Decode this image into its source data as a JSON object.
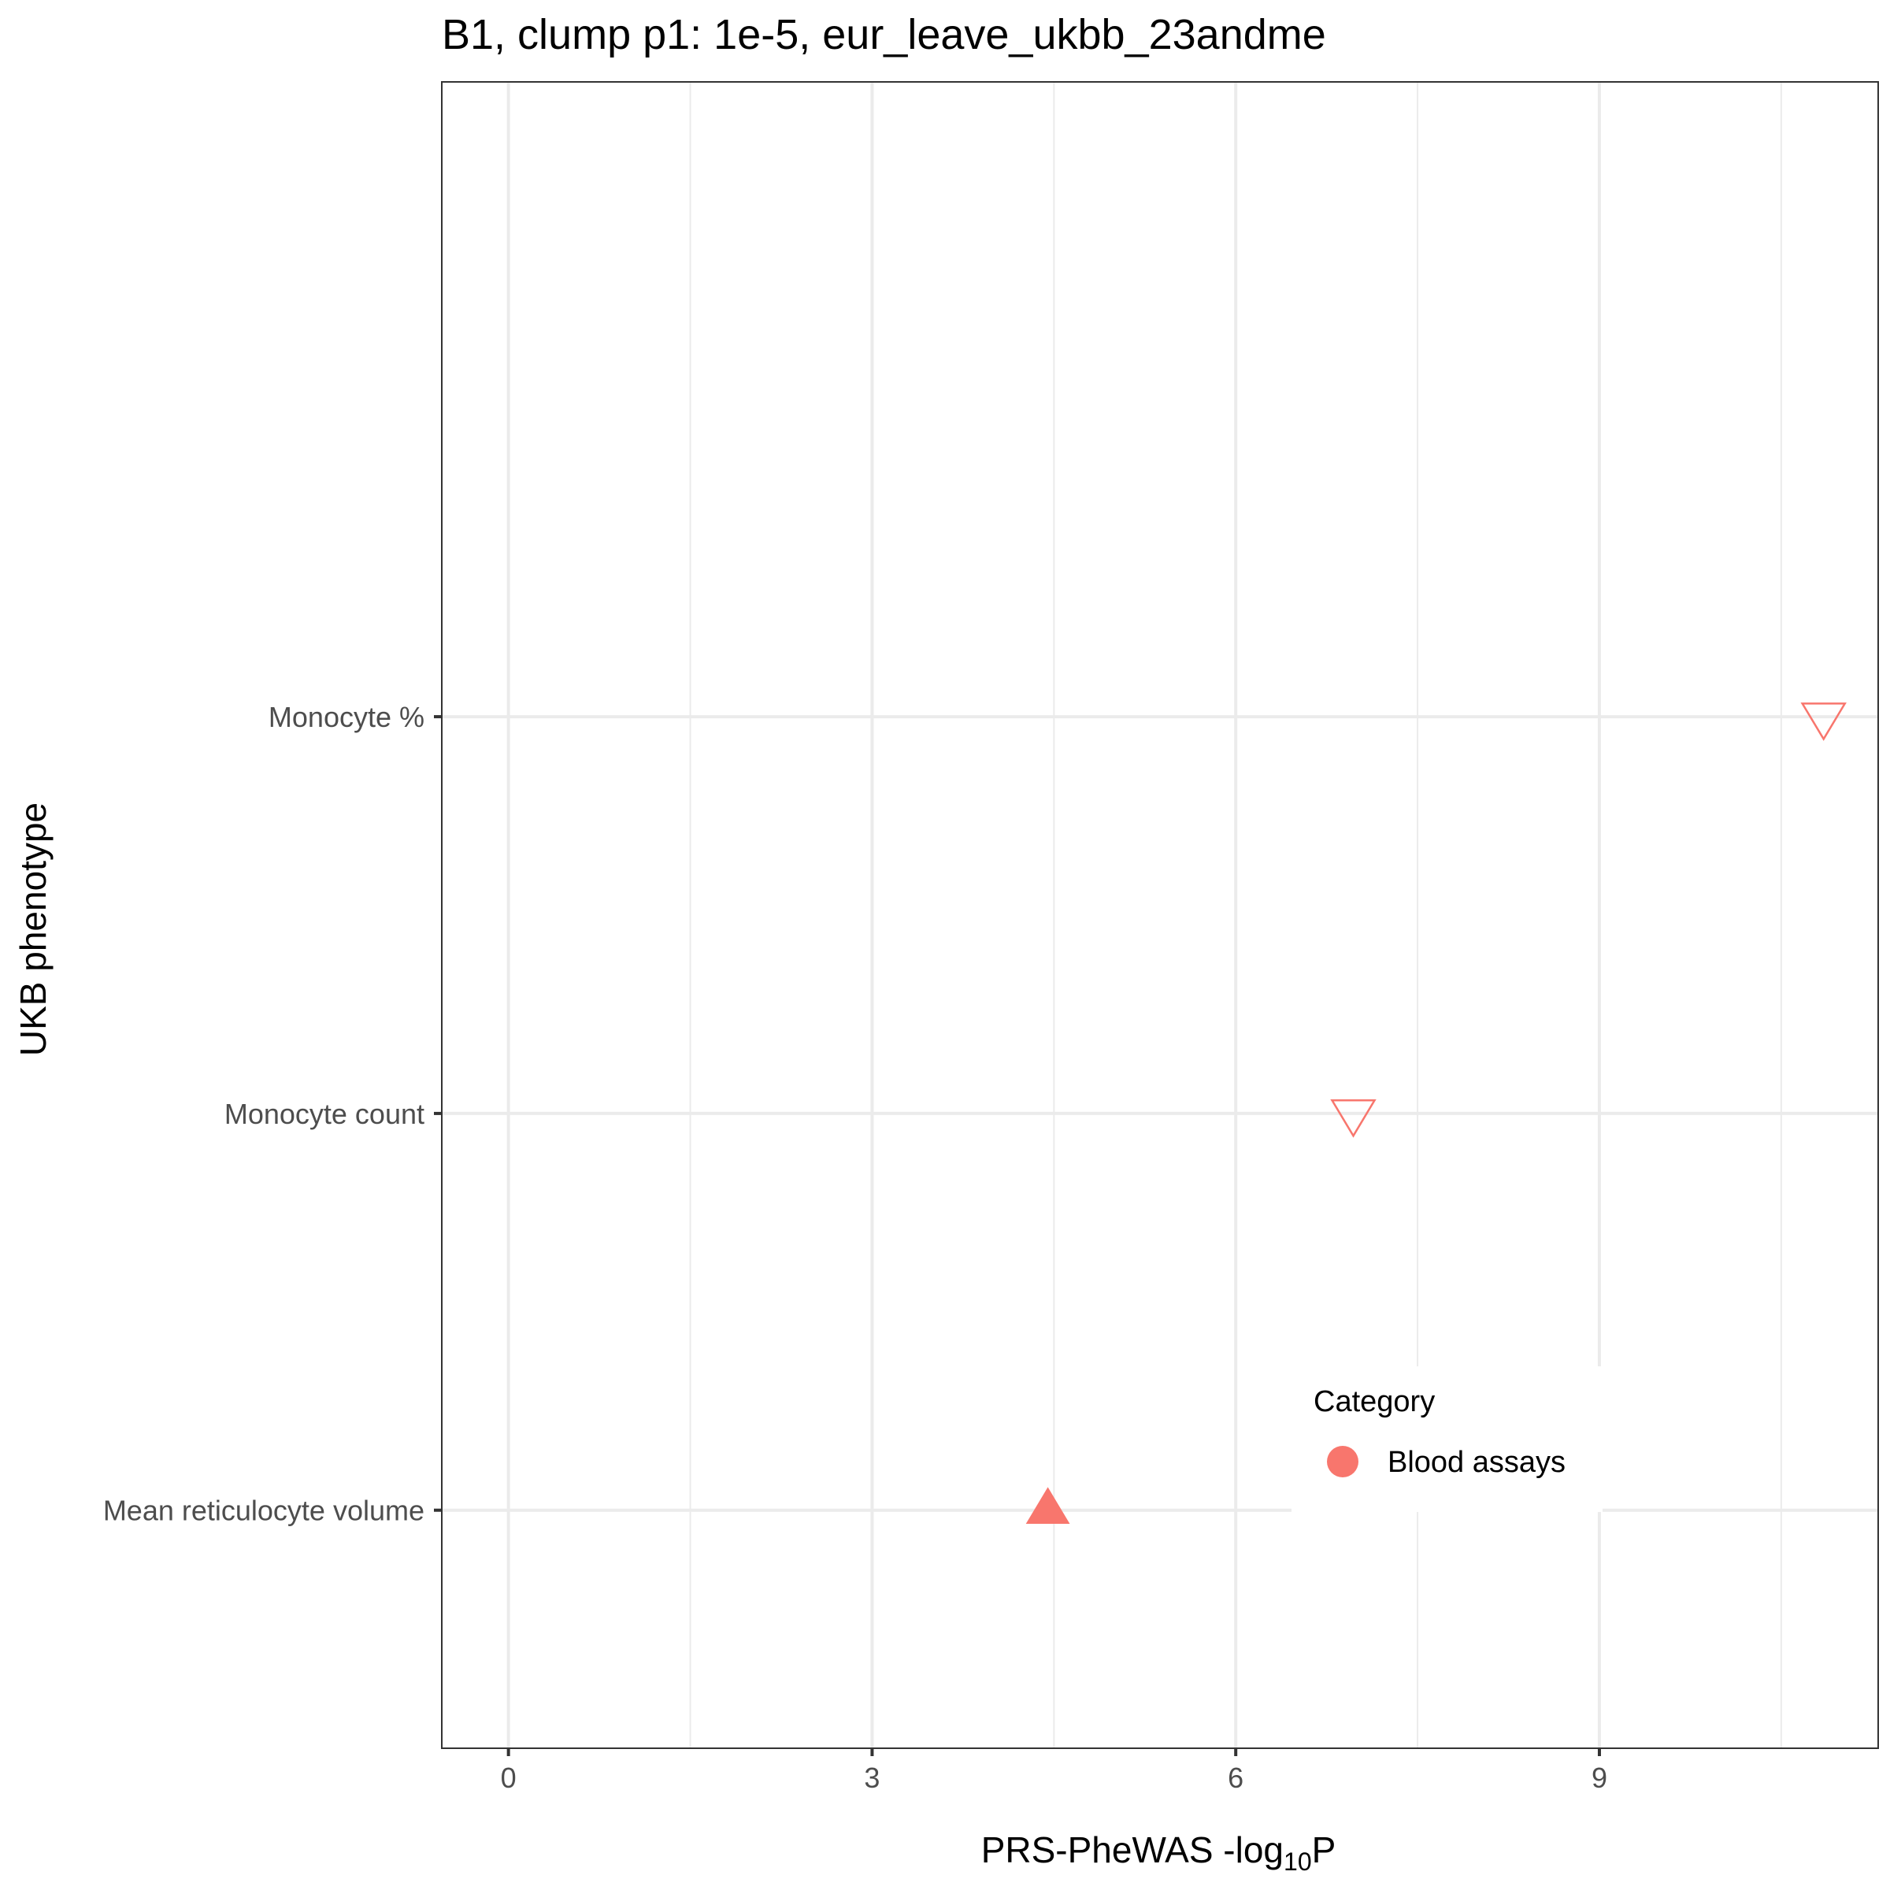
{
  "chart_data": {
    "type": "scatter",
    "title": "B1, clump p1: 1e-5, eur_leave_ukbb_23andme",
    "xlabel": {
      "main": "PRS-PheWAS -log",
      "sub": "10",
      "tail": "P"
    },
    "ylabel": "UKB phenotype",
    "xlim": [
      -0.55,
      11.3
    ],
    "xticks": [
      0,
      3,
      6,
      9
    ],
    "xtick_labels": [
      "0",
      "3",
      "6",
      "9"
    ],
    "categories": [
      "Mean reticulocyte volume",
      "Monocyte count",
      "Monocyte %"
    ],
    "grid": true,
    "legend": {
      "title": "Category",
      "position": "bottom-right-inside"
    },
    "series": [
      {
        "name": "Blood assays",
        "color": "#F8766D",
        "points": [
          {
            "category": "Monocyte %",
            "x": 10.85,
            "shape": "triangle-down-open"
          },
          {
            "category": "Monocyte count",
            "x": 6.97,
            "shape": "triangle-down-open"
          },
          {
            "category": "Mean reticulocyte volume",
            "x": 4.45,
            "shape": "triangle-up-filled"
          }
        ]
      }
    ]
  }
}
